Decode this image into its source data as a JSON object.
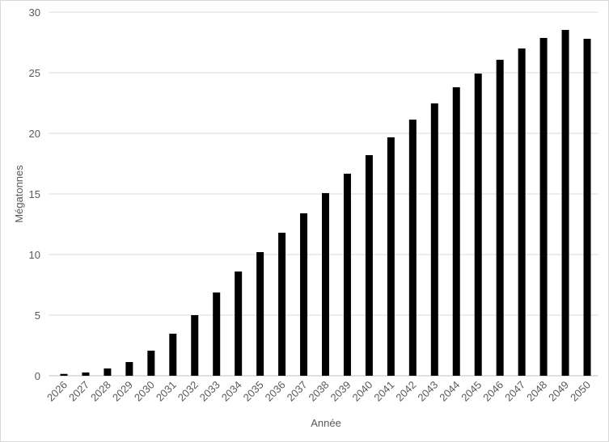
{
  "chart_data": {
    "type": "bar",
    "y_label": "Mégatonnes",
    "x_label": "Année",
    "categories": [
      "2026",
      "2027",
      "2028",
      "2029",
      "2030",
      "2031",
      "2032",
      "2033",
      "2034",
      "2035",
      "2036",
      "2037",
      "2038",
      "2039",
      "2040",
      "2041",
      "2042",
      "2043",
      "2044",
      "2045",
      "2046",
      "2047",
      "2048",
      "2049",
      "2050"
    ],
    "values": [
      0.15,
      0.27,
      0.6,
      1.13,
      2.07,
      3.47,
      5.0,
      6.87,
      8.6,
      10.2,
      11.8,
      13.4,
      15.07,
      16.67,
      18.2,
      19.67,
      21.13,
      22.47,
      23.8,
      24.93,
      26.07,
      27.0,
      27.87,
      28.53,
      27.8
    ],
    "color": "#000000",
    "ylim": [
      0,
      30
    ],
    "yticks": [
      0,
      5,
      10,
      15,
      20,
      25,
      30
    ],
    "grid": true
  }
}
